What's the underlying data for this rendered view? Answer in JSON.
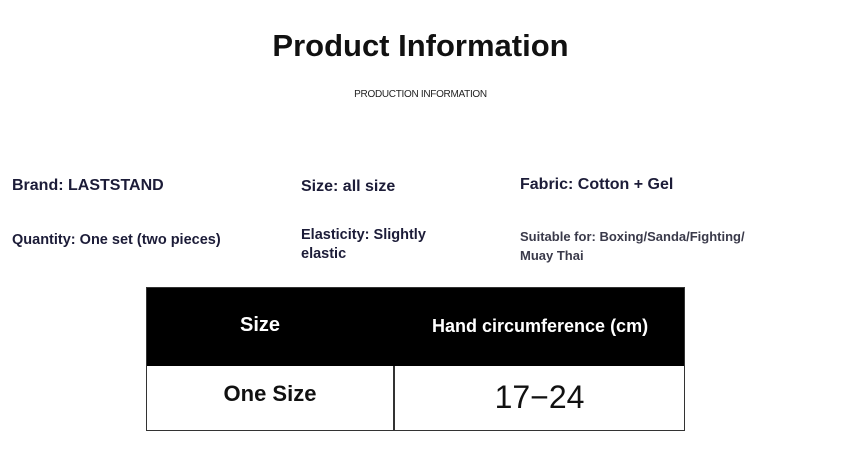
{
  "header": {
    "title": "Product Information",
    "subtitle": "PRODUCTION INFORMATION"
  },
  "specs": {
    "brand": "Brand: LASTSTAND",
    "size": "Size: all size",
    "fabric": "Fabric: Cotton + Gel",
    "quantity": "Quantity: One set (two pieces)",
    "elasticity_line1": "Elasticity: Slightly",
    "elasticity_line2": "elastic",
    "suitable_line1": "Suitable for: Boxing/Sanda/Fighting/",
    "suitable_line2": "Muay Thai"
  },
  "table": {
    "headers": [
      "Size",
      "Hand circumference (cm)"
    ],
    "rows": [
      [
        "One Size",
        "17−24"
      ]
    ]
  }
}
